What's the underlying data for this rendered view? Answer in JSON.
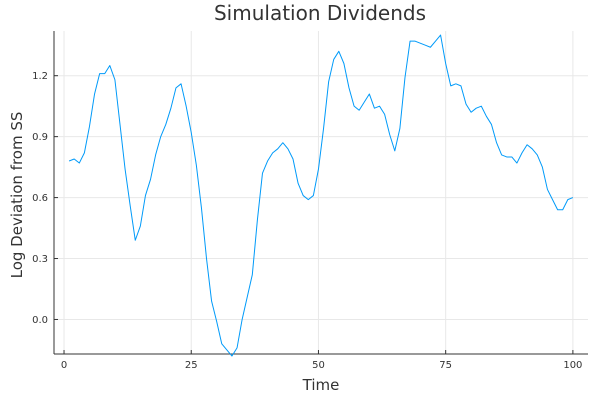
{
  "chart_data": {
    "type": "line",
    "title": "Simulation Dividends",
    "xlabel": "Time",
    "ylabel": "Log Deviation from SS",
    "xlim": [
      -1.97,
      102.97
    ],
    "ylim": [
      -0.17,
      1.42
    ],
    "xticks": [
      0,
      25,
      50,
      75,
      100
    ],
    "xtick_labels": [
      "0",
      "25",
      "50",
      "75",
      "100"
    ],
    "yticks": [
      0.0,
      0.3,
      0.6,
      0.9,
      1.2
    ],
    "ytick_labels": [
      "0.0",
      "0.3",
      "0.6",
      "0.9",
      "1.2"
    ],
    "grid": true,
    "legend": "none",
    "series": [
      {
        "color": "#009af9",
        "x": [
          1,
          2,
          3,
          4,
          5,
          6,
          7,
          8,
          9,
          10,
          11,
          12,
          13,
          14,
          15,
          16,
          17,
          18,
          19,
          20,
          21,
          22,
          23,
          24,
          25,
          26,
          27,
          28,
          29,
          30,
          31,
          32,
          33,
          34,
          35,
          36,
          37,
          38,
          39,
          40,
          41,
          42,
          43,
          44,
          45,
          46,
          47,
          48,
          49,
          50,
          51,
          52,
          53,
          54,
          55,
          56,
          57,
          58,
          59,
          60,
          61,
          62,
          63,
          64,
          65,
          66,
          67,
          68,
          69,
          70,
          71,
          72,
          73,
          74,
          75,
          76,
          77,
          78,
          79,
          80,
          81,
          82,
          83,
          84,
          85,
          86,
          87,
          88,
          89,
          90,
          91,
          92,
          93,
          94,
          95,
          96,
          97,
          98,
          99,
          100
        ],
        "y": [
          0.78,
          0.79,
          0.77,
          0.82,
          0.95,
          1.11,
          1.21,
          1.21,
          1.25,
          1.18,
          0.96,
          0.74,
          0.56,
          0.39,
          0.46,
          0.61,
          0.69,
          0.81,
          0.9,
          0.96,
          1.04,
          1.14,
          1.16,
          1.05,
          0.92,
          0.76,
          0.55,
          0.3,
          0.09,
          -0.01,
          -0.12,
          -0.15,
          -0.18,
          -0.14,
          0.0,
          0.11,
          0.22,
          0.49,
          0.72,
          0.78,
          0.82,
          0.84,
          0.87,
          0.84,
          0.79,
          0.67,
          0.61,
          0.59,
          0.61,
          0.74,
          0.94,
          1.17,
          1.28,
          1.32,
          1.26,
          1.14,
          1.05,
          1.03,
          1.07,
          1.11,
          1.04,
          1.05,
          1.01,
          0.91,
          0.83,
          0.94,
          1.19,
          1.37,
          1.37,
          1.36,
          1.35,
          1.34,
          1.37,
          1.4,
          1.26,
          1.15,
          1.16,
          1.15,
          1.06,
          1.02,
          1.04,
          1.05,
          1.0,
          0.96,
          0.87,
          0.81,
          0.8,
          0.8,
          0.77,
          0.82,
          0.86,
          0.84,
          0.81,
          0.75,
          0.64,
          0.59,
          0.54,
          0.54,
          0.59,
          0.6
        ]
      }
    ]
  }
}
